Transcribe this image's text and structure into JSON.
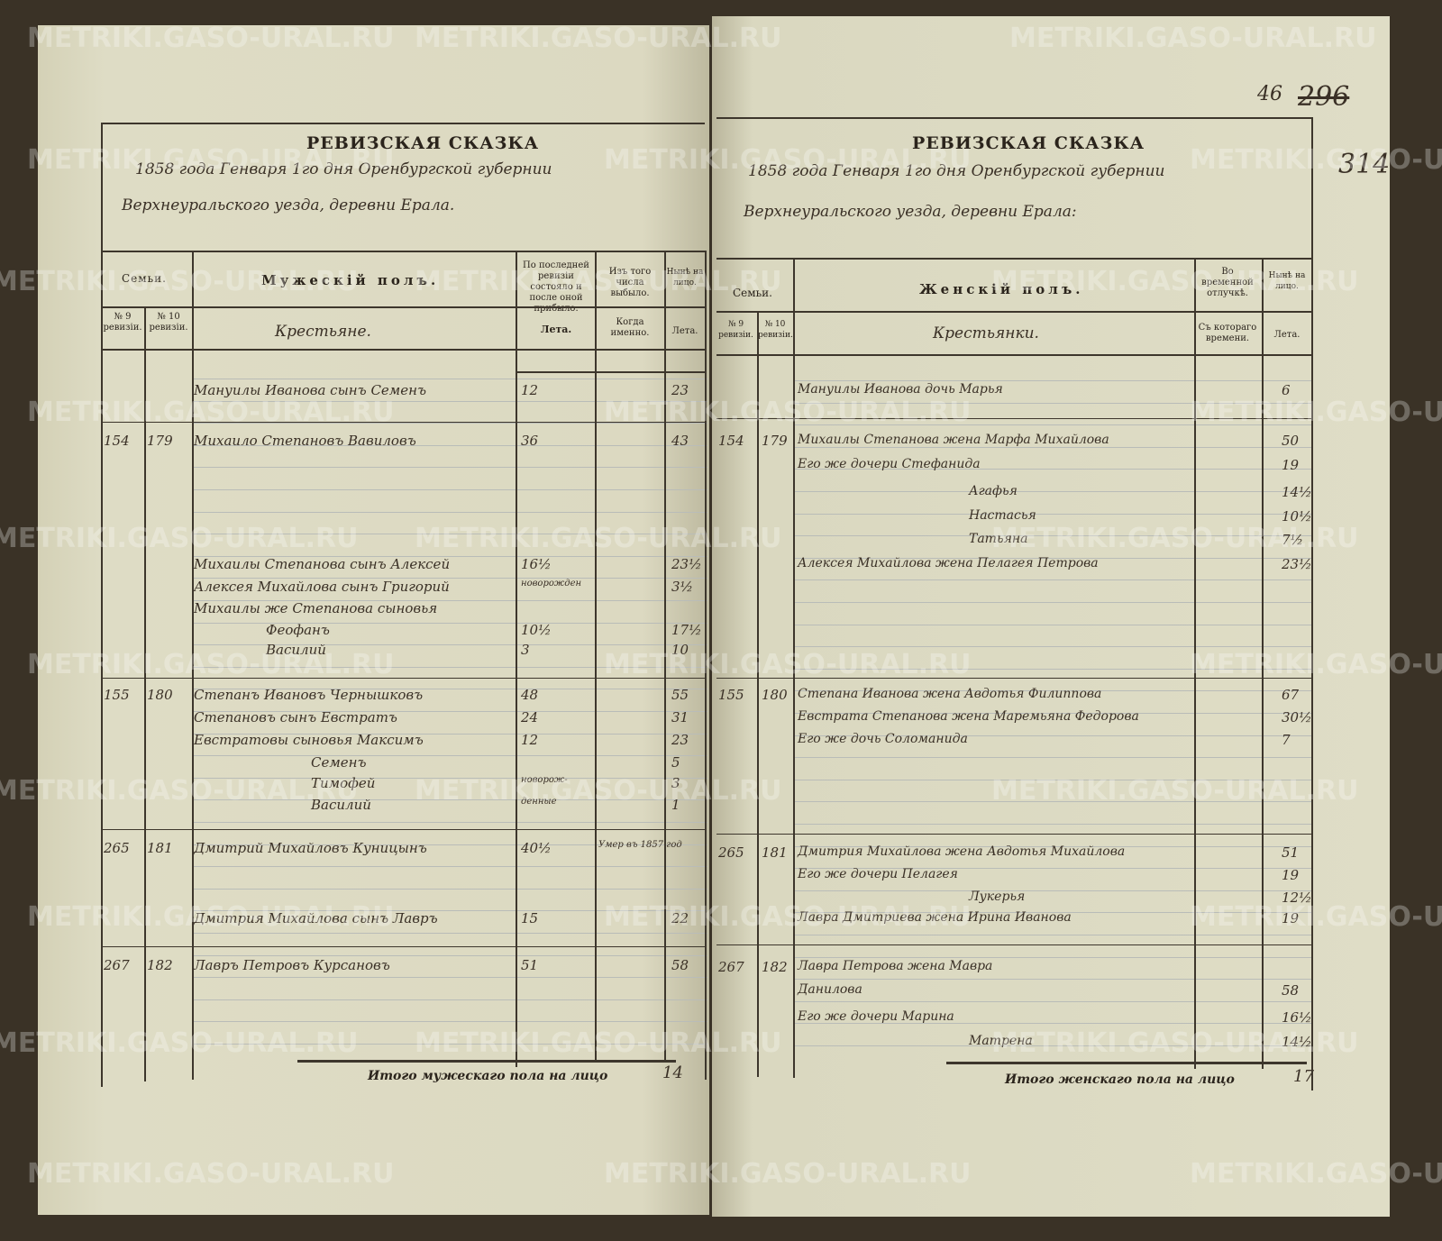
{
  "left_page": {
    "title": "РЕВИЗСКАЯ СКАЗКА",
    "date_line": "1858 года Генваря 1го дня Оренбургской губернии",
    "place_line": "Верхнеуральского уезда, деревни Ерала.",
    "headers": {
      "families": "Семьи.",
      "rev9": "№ 9 ревизіи.",
      "rev10": "№ 10 ревизіи.",
      "section": "Мужескій полъ.",
      "estate": "Крестьяне.",
      "last_rev": "По последней ревизіи состояло и после оной прибыло.",
      "last_rev_sub": "Лета.",
      "departed": "Изъ того числа выбыло.",
      "departed_sub": "Когда именно.",
      "present": "Нынѣ на лицо.",
      "present_sub": "Лета."
    },
    "entries": [
      {
        "n9": "",
        "n10": "",
        "name": "Мануилы Иванова сынъ Семенъ",
        "age_prev": "12",
        "departed": "",
        "age_now": "23"
      },
      {
        "n9": "154",
        "n10": "179",
        "name": "Михаило Степановъ Вавиловъ",
        "age_prev": "36",
        "departed": "",
        "age_now": "43"
      },
      {
        "n9": "",
        "n10": "",
        "name": "Михаилы Степанова сынъ Алексей",
        "age_prev": "16½",
        "departed": "",
        "age_now": "23½"
      },
      {
        "n9": "",
        "n10": "",
        "name": "Алексея Михайлова сынъ Григорий",
        "age_prev": "новорожден",
        "departed": "",
        "age_now": "3½"
      },
      {
        "n9": "",
        "n10": "",
        "name": "Михаилы же Степанова сыновья",
        "age_prev": "",
        "departed": "",
        "age_now": ""
      },
      {
        "n9": "",
        "n10": "",
        "name": "Феофанъ",
        "age_prev": "10½",
        "departed": "",
        "age_now": "17½"
      },
      {
        "n9": "",
        "n10": "",
        "name": "Василий",
        "age_prev": "3",
        "departed": "",
        "age_now": "10"
      },
      {
        "n9": "155",
        "n10": "180",
        "name": "Степанъ Ивановъ Чернышковъ",
        "age_prev": "48",
        "departed": "",
        "age_now": "55"
      },
      {
        "n9": "",
        "n10": "",
        "name": "Степановъ сынъ Евстратъ",
        "age_prev": "24",
        "departed": "",
        "age_now": "31"
      },
      {
        "n9": "",
        "n10": "",
        "name": "Евстратовы сыновья Максимъ",
        "age_prev": "12",
        "departed": "",
        "age_now": "23"
      },
      {
        "n9": "",
        "n10": "",
        "name": "Семенъ",
        "age_prev": "",
        "departed": "",
        "age_now": "5"
      },
      {
        "n9": "",
        "n10": "",
        "name": "Тимофей",
        "age_prev": "новорож-",
        "departed": "",
        "age_now": "3"
      },
      {
        "n9": "",
        "n10": "",
        "name": "Василий",
        "age_prev": "денные",
        "departed": "",
        "age_now": "1"
      },
      {
        "n9": "265",
        "n10": "181",
        "name": "Дмитрий Михайловъ Куницынъ",
        "age_prev": "40½",
        "departed": "Умер въ 1857 год",
        "age_now": ""
      },
      {
        "n9": "",
        "n10": "",
        "name": "Дмитрия Михайлова сынъ Лавръ",
        "age_prev": "15",
        "departed": "",
        "age_now": "22"
      },
      {
        "n9": "267",
        "n10": "182",
        "name": "Лавръ Петровъ Курсановъ",
        "age_prev": "51",
        "departed": "",
        "age_now": "58"
      }
    ],
    "total_label": "Итого мужескаго пола на лицо",
    "total_value": "14"
  },
  "right_page": {
    "page_numbers": [
      "46",
      "296",
      "314"
    ],
    "title": "РЕВИЗСКАЯ СКАЗКА",
    "date_line": "1858 года Генваря 1го дня Оренбургской губернии",
    "place_line": "Верхнеуральского уезда, деревни Ерала:",
    "headers": {
      "families": "Семьи.",
      "rev9": "№ 9 ревизіи.",
      "rev10": "№ 10 ревизіи.",
      "section": "Женскій полъ.",
      "estate": "Крестьянки.",
      "absent": "Во временной отлучкѣ.",
      "absent_sub": "Съ котораго времени.",
      "present": "Нынѣ на лицо.",
      "present_sub": "Лета."
    },
    "entries": [
      {
        "n9": "",
        "n10": "",
        "name": "Мануилы Иванова дочь Марья",
        "absent": "",
        "age": "6"
      },
      {
        "n9": "154",
        "n10": "179",
        "name": "Михаилы Степанова жена Марфа Михайлова",
        "absent": "",
        "age": "50"
      },
      {
        "n9": "",
        "n10": "",
        "name": "Его же дочери Стефанида",
        "absent": "",
        "age": "19"
      },
      {
        "n9": "",
        "n10": "",
        "name": "Агафья",
        "absent": "",
        "age": "14½"
      },
      {
        "n9": "",
        "n10": "",
        "name": "Настасья",
        "absent": "",
        "age": "10½"
      },
      {
        "n9": "",
        "n10": "",
        "name": "Татьяна",
        "absent": "",
        "age": "7½"
      },
      {
        "n9": "",
        "n10": "",
        "name": "Алексея Михайлова жена Пелагея Петрова",
        "absent": "",
        "age": "23½"
      },
      {
        "n9": "155",
        "n10": "180",
        "name": "Степана Иванова жена Авдотья Филиппова",
        "absent": "",
        "age": "67"
      },
      {
        "n9": "",
        "n10": "",
        "name": "Евстрата Степанова жена Маремьяна Федорова",
        "absent": "",
        "age": "30½"
      },
      {
        "n9": "",
        "n10": "",
        "name": "Его же дочь Соломанида",
        "absent": "",
        "age": "7"
      },
      {
        "n9": "265",
        "n10": "181",
        "name": "Дмитрия Михайлова жена Авдотья Михайлова",
        "absent": "",
        "age": "51"
      },
      {
        "n9": "",
        "n10": "",
        "name": "Его же дочери Пелагея",
        "absent": "",
        "age": "19"
      },
      {
        "n9": "",
        "n10": "",
        "name": "Лукерья",
        "absent": "",
        "age": "12½"
      },
      {
        "n9": "",
        "n10": "",
        "name": "Лавра Дмитриева жена Ирина Иванова",
        "absent": "",
        "age": "19"
      },
      {
        "n9": "267",
        "n10": "182",
        "name": "Лавра Петрова жена Мавра",
        "absent": "",
        "age": ""
      },
      {
        "n9": "",
        "n10": "",
        "name": "Данилова",
        "absent": "",
        "age": "58"
      },
      {
        "n9": "",
        "n10": "",
        "name": "Его же дочери Марина",
        "absent": "",
        "age": "16½"
      },
      {
        "n9": "",
        "n10": "",
        "name": "Матрена",
        "absent": "",
        "age": "14½"
      }
    ],
    "total_label": "Итого женскаго пола на лицо",
    "total_value": "17"
  },
  "watermark": "METRIKI.GASO-URAL.RU"
}
